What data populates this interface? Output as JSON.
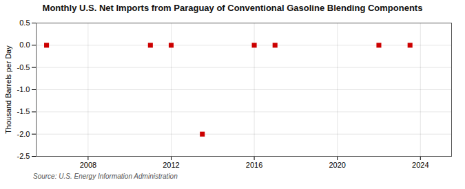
{
  "chart_data": {
    "type": "scatter",
    "title": "Monthly U.S. Net Imports from Paraguay of Conventional Gasoline Blending Components",
    "ylabel": "Thousand Barrels per Day",
    "source": "Source: U.S. Energy Information Administration",
    "x": [
      2006.0,
      2011.0,
      2012.0,
      2013.5,
      2016.0,
      2017.0,
      2022.0,
      2023.5
    ],
    "values": [
      0.0,
      0.0,
      0.0,
      -2.0,
      0.0,
      0.0,
      0.0,
      0.0
    ],
    "color": "#cc0000",
    "marker": "square",
    "xlim": [
      2005.5,
      2025.5
    ],
    "xticks": [
      2008,
      2012,
      2016,
      2020,
      2024
    ],
    "ylim": [
      -2.5,
      0.5
    ],
    "yticks": [
      0.5,
      {
        "value": 0,
        "label": "0.0"
      },
      -0.5,
      {
        "value": -1,
        "label": "-1.0"
      },
      -1.5,
      {
        "value": -2,
        "label": "-2.0"
      },
      -2.5
    ],
    "grid": true
  }
}
